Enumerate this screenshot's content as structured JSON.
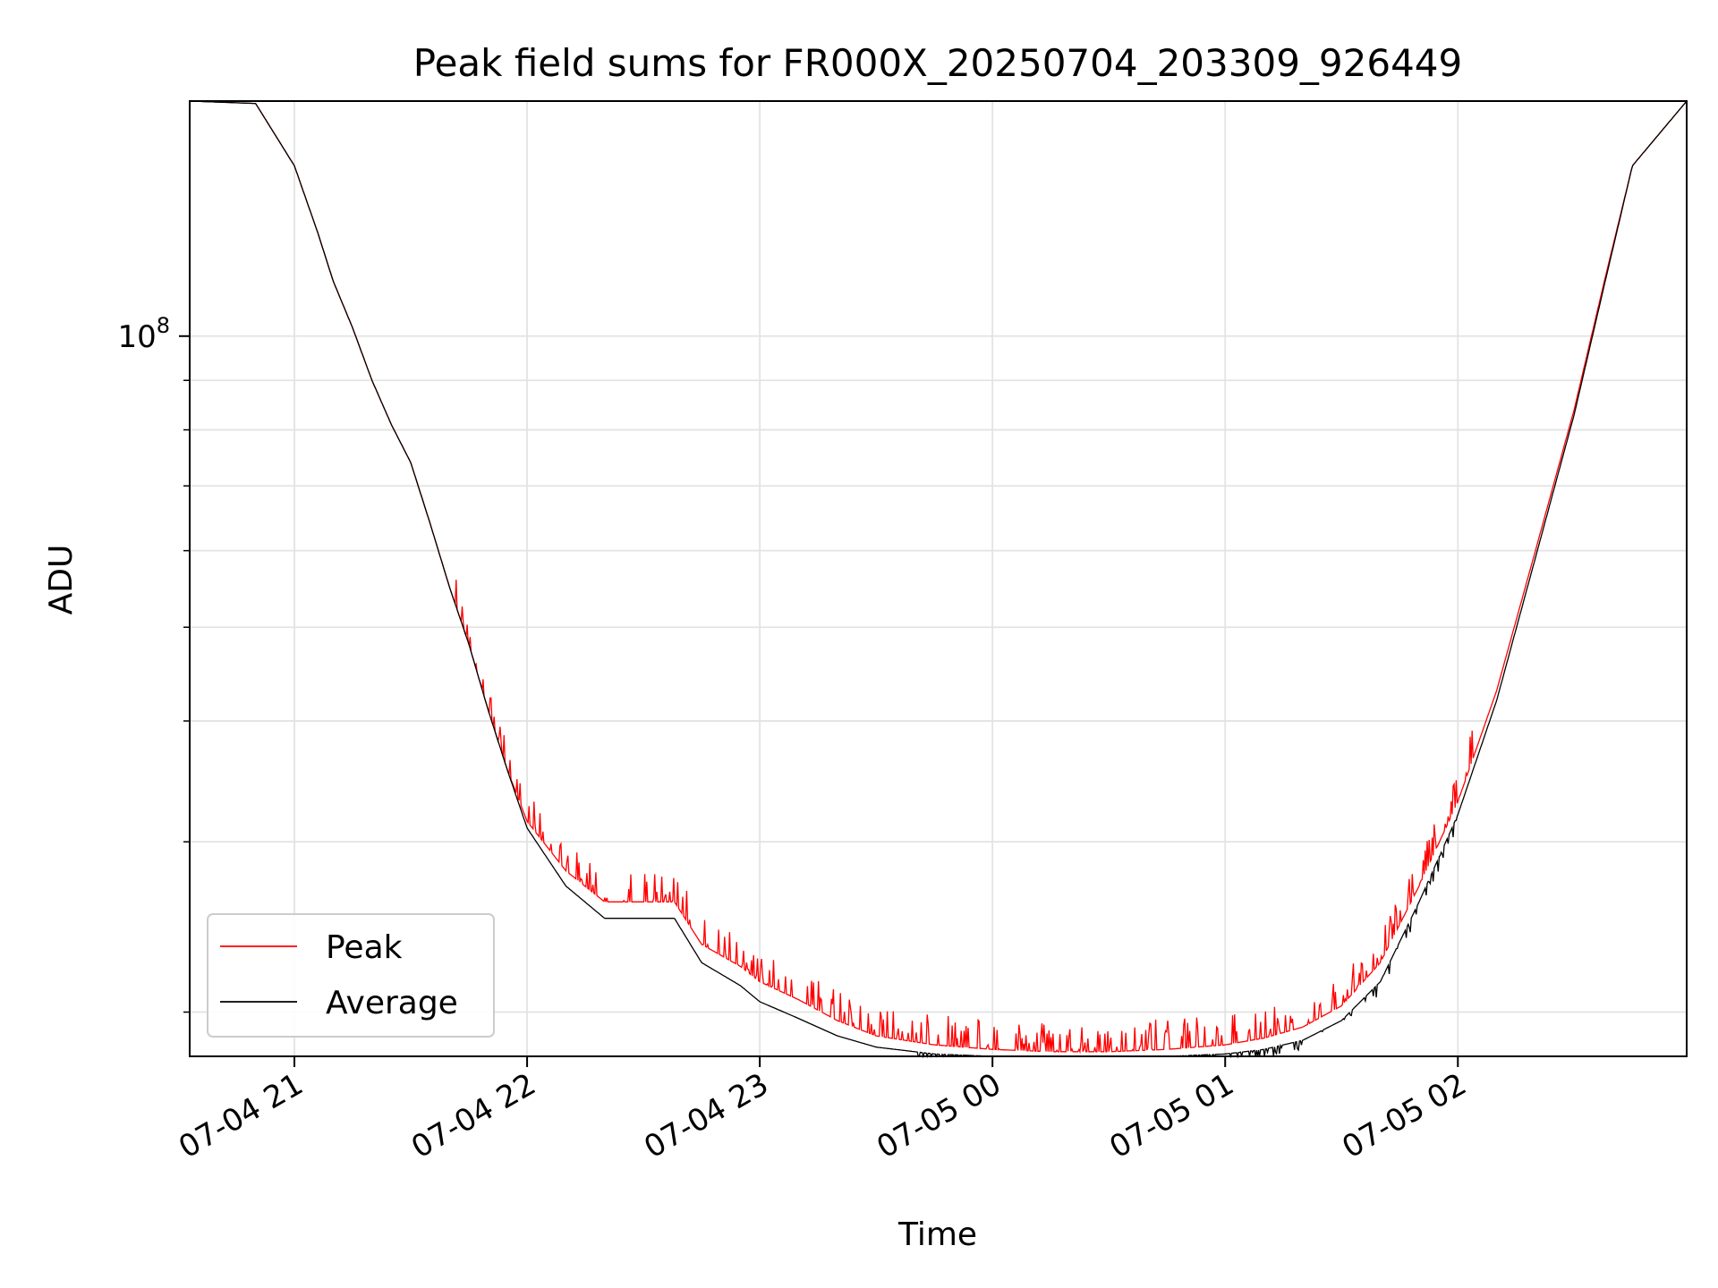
{
  "chart_data": {
    "type": "line",
    "title": "Peak field sums for FR000X_20250704_203309_926449",
    "xlabel": "Time",
    "ylabel": "ADU",
    "yscale": "log",
    "grid": true,
    "legend_position": "lower-left",
    "xlim": [
      "2025-07-04 20:33",
      "2025-07-05 02:59"
    ],
    "ylim": [
      18000000,
      175000000
    ],
    "x_ticks": [
      {
        "label": "07-04 21",
        "time": "2025-07-04 21:00"
      },
      {
        "label": "07-04 22",
        "time": "2025-07-04 22:00"
      },
      {
        "label": "07-04 23",
        "time": "2025-07-04 23:00"
      },
      {
        "label": "07-05 00",
        "time": "2025-07-05 00:00"
      },
      {
        "label": "07-05 01",
        "time": "2025-07-05 01:00"
      },
      {
        "label": "07-05 02",
        "time": "2025-07-05 02:00"
      }
    ],
    "y_ticks": [
      {
        "value": 100000000,
        "base": "10",
        "exp": "8"
      }
    ],
    "y_minor_ticks": [
      20000000,
      30000000,
      40000000,
      50000000,
      60000000,
      70000000,
      80000000,
      90000000,
      200000000
    ],
    "series": [
      {
        "name": "Peak",
        "color": "#ff0000",
        "noise": "positive spikes",
        "x": [
          "2025-07-04 20:33",
          "2025-07-04 20:50",
          "2025-07-04 21:00",
          "2025-07-04 21:06",
          "2025-07-04 21:10",
          "2025-07-04 21:15",
          "2025-07-04 21:20",
          "2025-07-04 21:25",
          "2025-07-04 21:30",
          "2025-07-04 21:35",
          "2025-07-04 21:40",
          "2025-07-04 21:45",
          "2025-07-04 21:50",
          "2025-07-04 21:55",
          "2025-07-04 22:00",
          "2025-07-04 22:10",
          "2025-07-04 22:20",
          "2025-07-04 22:30",
          "2025-07-04 22:38",
          "2025-07-04 22:45",
          "2025-07-04 22:55",
          "2025-07-04 23:00",
          "2025-07-04 23:10",
          "2025-07-04 23:20",
          "2025-07-04 23:30",
          "2025-07-04 23:45",
          "2025-07-05 00:00",
          "2025-07-05 00:15",
          "2025-07-05 00:30",
          "2025-07-05 00:45",
          "2025-07-05 01:00",
          "2025-07-05 01:10",
          "2025-07-05 01:20",
          "2025-07-05 01:30",
          "2025-07-05 01:40",
          "2025-07-05 01:50",
          "2025-07-05 02:00",
          "2025-07-05 02:10",
          "2025-07-05 02:20",
          "2025-07-05 02:30",
          "2025-07-05 02:38",
          "2025-07-05 02:45",
          "2025-07-05 02:59"
        ],
        "y": [
          175000000,
          174000000,
          150000000,
          128000000,
          114000000,
          102000000,
          90000000,
          81000000,
          74000000,
          64000000,
          55000000,
          48000000,
          41000000,
          35500000,
          31500000,
          28000000,
          26000000,
          26000000,
          26000000,
          23500000,
          22300000,
          21500000,
          20600000,
          19600000,
          18900000,
          18500000,
          18300000,
          18200000,
          18200000,
          18300000,
          18500000,
          18800000,
          19300000,
          20300000,
          22500000,
          27000000,
          33000000,
          43000000,
          60000000,
          84000000,
          115000000,
          150000000,
          175000000
        ]
      },
      {
        "name": "Average",
        "color": "#000000",
        "noise": "negative dips",
        "x": [
          "2025-07-04 20:33",
          "2025-07-04 20:50",
          "2025-07-04 21:00",
          "2025-07-04 21:06",
          "2025-07-04 21:10",
          "2025-07-04 21:15",
          "2025-07-04 21:20",
          "2025-07-04 21:25",
          "2025-07-04 21:30",
          "2025-07-04 21:35",
          "2025-07-04 21:40",
          "2025-07-04 21:45",
          "2025-07-04 21:50",
          "2025-07-04 21:55",
          "2025-07-04 22:00",
          "2025-07-04 22:10",
          "2025-07-04 22:20",
          "2025-07-04 22:30",
          "2025-07-04 22:38",
          "2025-07-04 22:45",
          "2025-07-04 22:55",
          "2025-07-04 23:00",
          "2025-07-04 23:10",
          "2025-07-04 23:20",
          "2025-07-04 23:30",
          "2025-07-04 23:45",
          "2025-07-05 00:00",
          "2025-07-05 00:15",
          "2025-07-05 00:30",
          "2025-07-05 00:45",
          "2025-07-05 01:00",
          "2025-07-05 01:10",
          "2025-07-05 01:20",
          "2025-07-05 01:30",
          "2025-07-05 01:40",
          "2025-07-05 01:50",
          "2025-07-05 02:00",
          "2025-07-05 02:10",
          "2025-07-05 02:20",
          "2025-07-05 02:30",
          "2025-07-05 02:38",
          "2025-07-05 02:45",
          "2025-07-05 02:59"
        ],
        "y": [
          175000000,
          174000000,
          150000000,
          128000000,
          114000000,
          102000000,
          90000000,
          81000000,
          74000000,
          64000000,
          55000000,
          48000000,
          41000000,
          35500000,
          31000000,
          27000000,
          25000000,
          25000000,
          25000000,
          22500000,
          21300000,
          20500000,
          19700000,
          18900000,
          18400000,
          18100000,
          18000000,
          18000000,
          18000000,
          18000000,
          18100000,
          18300000,
          18700000,
          19600000,
          21500000,
          26000000,
          32000000,
          42000000,
          59000000,
          83000000,
          114000000,
          150000000,
          175000000
        ]
      }
    ]
  }
}
